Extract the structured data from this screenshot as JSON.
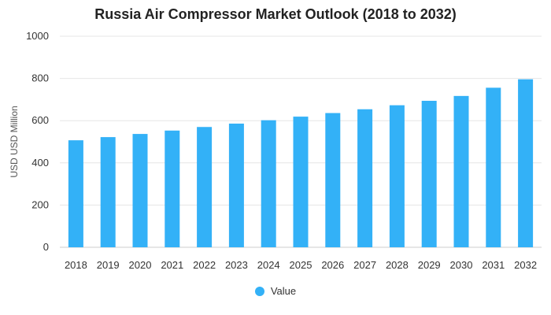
{
  "chart_data": {
    "type": "bar",
    "title": "Russia Air Compressor Market Outlook (2018 to 2032)",
    "xlabel": "",
    "ylabel": "USD USD Million",
    "categories": [
      "2018",
      "2019",
      "2020",
      "2021",
      "2022",
      "2023",
      "2024",
      "2025",
      "2026",
      "2027",
      "2028",
      "2029",
      "2030",
      "2031",
      "2032"
    ],
    "series": [
      {
        "name": "Value",
        "values": [
          507,
          522,
          537,
          553,
          570,
          586,
          602,
          619,
          636,
          654,
          673,
          694,
          717,
          756,
          796
        ],
        "color": "#33b1f7"
      }
    ],
    "ylim": [
      0,
      1000
    ],
    "yticks": [
      0,
      200,
      400,
      600,
      800,
      1000
    ],
    "grid": true,
    "legend_position": "bottom-center",
    "colors": {
      "bar": "#33b1f7",
      "grid": "#e6e6e6",
      "axis_text": "#333333"
    }
  }
}
